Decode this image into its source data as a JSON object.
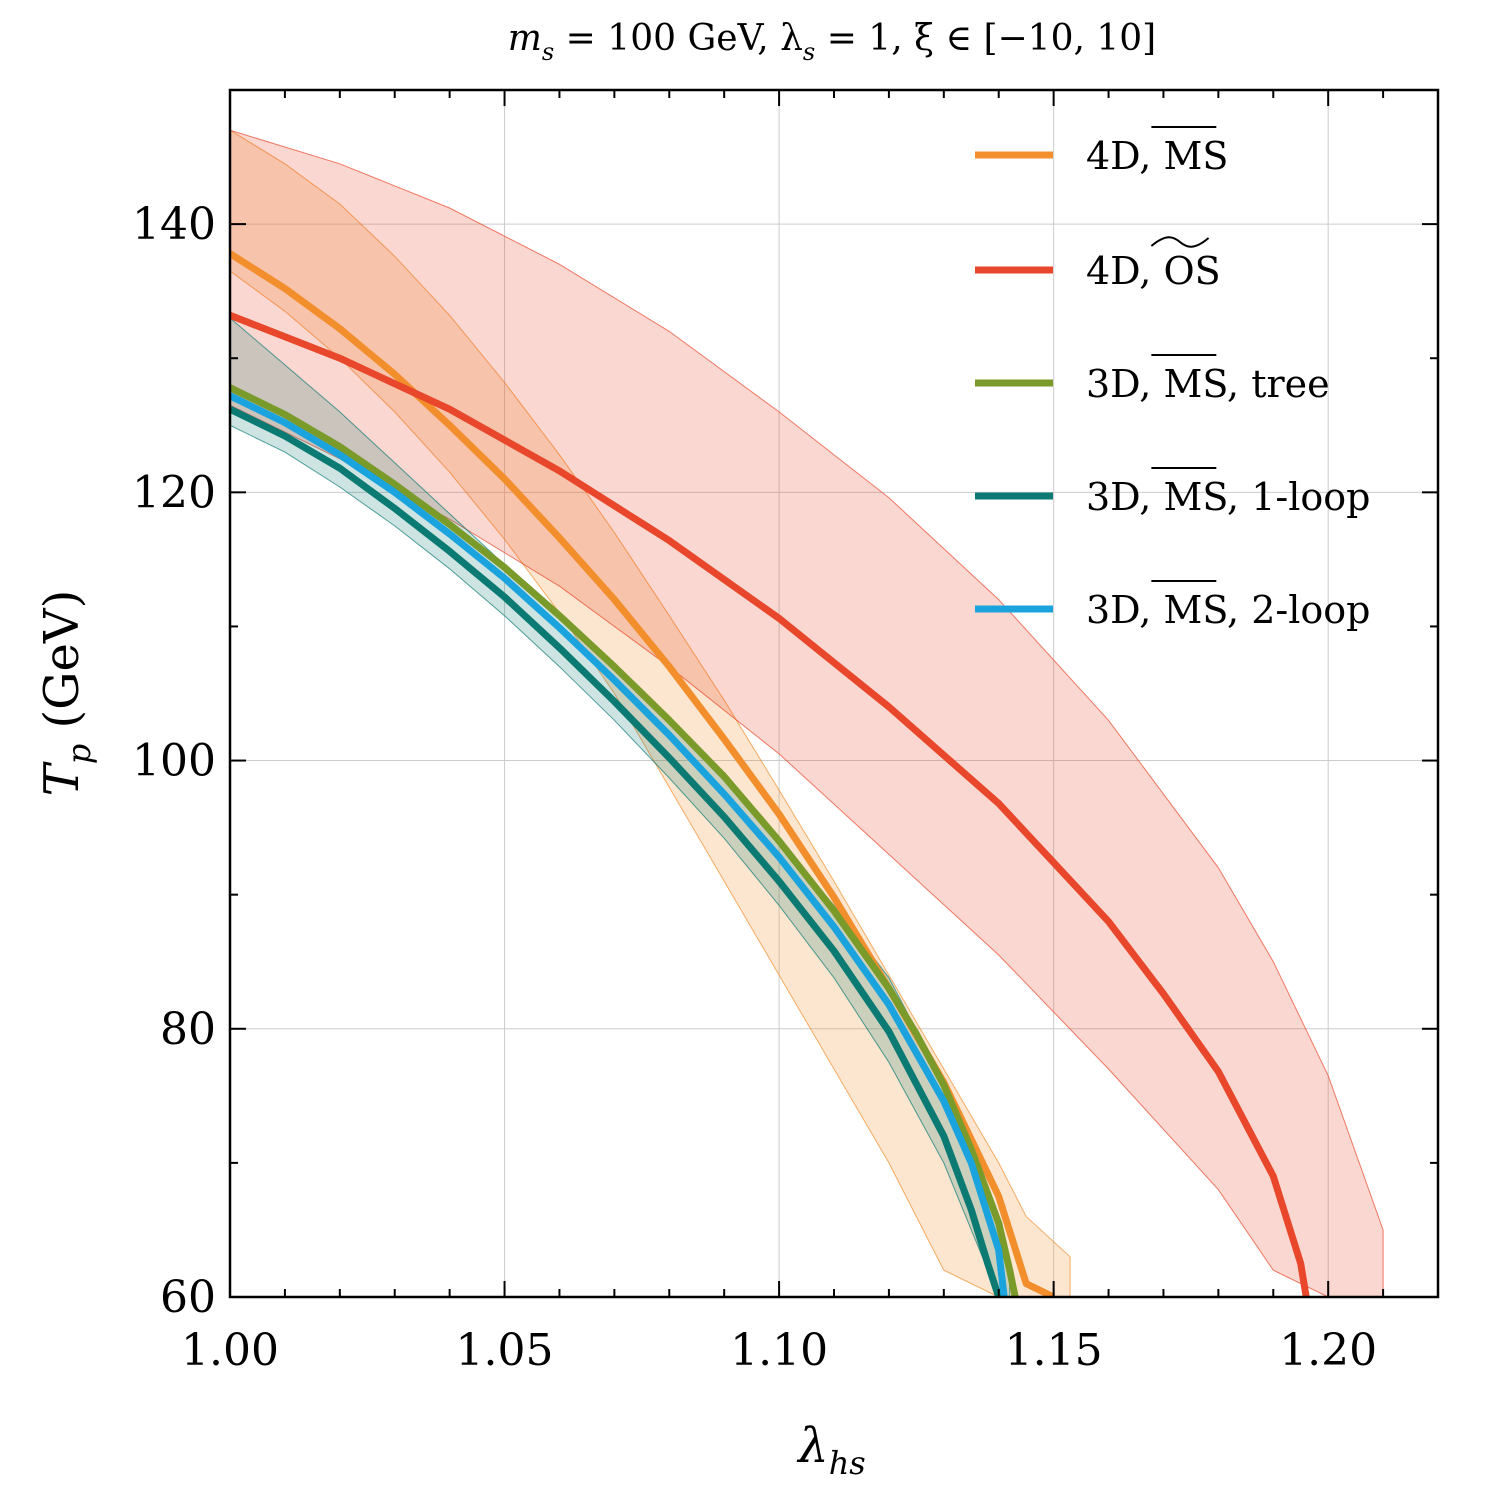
{
  "chart_data": {
    "type": "line",
    "title": "m_s = 100 GeV, λ_s = 1, ξ ∈ [−10, 10]",
    "title_parts": [
      "m",
      "s",
      " = 100 GeV, λ",
      "s",
      " = 1, ξ ∈ [−10, 10]"
    ],
    "xlabel": "λ_hs",
    "xlabel_parts": [
      "λ",
      "hs"
    ],
    "ylabel": "T_p (GeV)",
    "ylabel_parts": [
      "T",
      "p",
      " (GeV)"
    ],
    "xlim": [
      1.0,
      1.22
    ],
    "ylim": [
      60,
      150
    ],
    "xticks": [
      1.0,
      1.05,
      1.1,
      1.15,
      1.2
    ],
    "xtick_labels": [
      "1.00",
      "1.05",
      "1.10",
      "1.15",
      "1.20"
    ],
    "yticks": [
      60,
      80,
      100,
      120,
      140
    ],
    "ytick_labels": [
      "60",
      "80",
      "100",
      "120",
      "140"
    ],
    "x_minor_step": 0.01,
    "y_minor_step": 10,
    "grid": true,
    "legend_position": "top-right",
    "legend_labels": [
      {
        "main": "4D, MS",
        "over": "MS",
        "bar": "line"
      },
      {
        "main": "4D, OS",
        "over": "OS",
        "bar": "tilde"
      },
      {
        "main": "3D, MS, tree",
        "over": "MS",
        "bar": "line"
      },
      {
        "main": "3D, MS, 1-loop",
        "over": "MS",
        "bar": "line"
      },
      {
        "main": "3D, MS, 2-loop",
        "over": "MS",
        "bar": "line"
      }
    ],
    "series": [
      {
        "name": "4D, MS",
        "color": "#f28e2b",
        "x": [
          1.0,
          1.01,
          1.02,
          1.03,
          1.04,
          1.05,
          1.06,
          1.07,
          1.08,
          1.09,
          1.1,
          1.11,
          1.12,
          1.13,
          1.14,
          1.145,
          1.15
        ],
        "y": [
          137.8,
          135.2,
          132.2,
          128.8,
          125.0,
          121.0,
          116.6,
          112.0,
          107.0,
          101.6,
          96.0,
          89.8,
          83.0,
          76.0,
          67.5,
          61.0,
          60.0
        ],
        "band": {
          "color": "#f28e2b",
          "opacity": 0.22,
          "x": [
            1.0,
            1.01,
            1.02,
            1.03,
            1.04,
            1.05,
            1.06,
            1.07,
            1.08,
            1.09,
            1.1,
            1.11,
            1.12,
            1.13,
            1.14,
            1.145,
            1.153,
            1.153
          ],
          "upper": [
            147.0,
            144.5,
            141.5,
            137.6,
            133.2,
            128.2,
            122.8,
            117.0,
            110.8,
            104.5,
            97.8,
            91.0,
            84.0,
            77.0,
            70.0,
            66.0,
            63.0,
            60.0
          ],
          "lower": [
            136.5,
            133.5,
            130.0,
            126.0,
            121.5,
            116.5,
            111.0,
            105.0,
            98.0,
            91.0,
            84.0,
            77.0,
            70.0,
            62.0,
            60.0,
            60.0,
            60.0,
            60.0
          ]
        }
      },
      {
        "name": "4D, OS",
        "color": "#e8472b",
        "x": [
          1.0,
          1.02,
          1.04,
          1.06,
          1.08,
          1.1,
          1.12,
          1.14,
          1.16,
          1.17,
          1.18,
          1.19,
          1.195,
          1.196
        ],
        "y": [
          133.2,
          130.0,
          126.2,
          121.6,
          116.4,
          110.6,
          104.0,
          96.8,
          88.0,
          82.6,
          76.8,
          69.0,
          62.5,
          60.0
        ],
        "band": {
          "color": "#e8472b",
          "opacity": 0.22,
          "x": [
            1.0,
            1.02,
            1.04,
            1.06,
            1.08,
            1.1,
            1.12,
            1.14,
            1.16,
            1.18,
            1.19,
            1.2,
            1.21,
            1.21
          ],
          "upper": [
            147.0,
            144.5,
            141.2,
            137.0,
            132.0,
            126.0,
            119.6,
            112.0,
            103.0,
            92.0,
            85.0,
            76.5,
            65.0,
            60.0
          ],
          "lower": [
            126.5,
            122.5,
            118.0,
            113.0,
            107.0,
            100.5,
            93.0,
            85.5,
            77.0,
            68.0,
            62.0,
            60.0,
            60.0,
            60.0
          ]
        }
      },
      {
        "name": "3D, MS, tree",
        "color": "#7a9a2a",
        "x": [
          1.0,
          1.01,
          1.02,
          1.03,
          1.04,
          1.05,
          1.06,
          1.07,
          1.08,
          1.09,
          1.1,
          1.11,
          1.12,
          1.125,
          1.13,
          1.135,
          1.14,
          1.142,
          1.143
        ],
        "y": [
          127.8,
          125.8,
          123.4,
          120.6,
          117.6,
          114.4,
          110.8,
          107.0,
          103.0,
          98.8,
          94.0,
          88.8,
          83.0,
          79.6,
          75.8,
          71.0,
          65.5,
          62.0,
          60.0
        ]
      },
      {
        "name": "3D, MS, 1-loop",
        "color": "#0a7a73",
        "x": [
          1.0,
          1.01,
          1.02,
          1.03,
          1.04,
          1.05,
          1.06,
          1.07,
          1.08,
          1.09,
          1.1,
          1.11,
          1.12,
          1.13,
          1.135,
          1.138,
          1.14
        ],
        "y": [
          126.2,
          124.2,
          121.8,
          118.8,
          115.6,
          112.2,
          108.4,
          104.4,
          100.2,
          95.8,
          91.0,
          85.8,
          79.8,
          72.0,
          66.5,
          62.5,
          60.0
        ],
        "band": {
          "color": "#0a7a73",
          "opacity": 0.2,
          "x": [
            1.0,
            1.01,
            1.02,
            1.03,
            1.04,
            1.05,
            1.06,
            1.07,
            1.08,
            1.09,
            1.1,
            1.11,
            1.12,
            1.13,
            1.135,
            1.14,
            1.142,
            1.142
          ],
          "upper": [
            133.0,
            129.5,
            126.0,
            122.2,
            118.4,
            114.6,
            110.8,
            106.8,
            102.8,
            98.5,
            94.0,
            89.2,
            83.8,
            76.0,
            71.0,
            65.0,
            62.0,
            60.0
          ],
          "lower": [
            125.0,
            123.0,
            120.4,
            117.5,
            114.3,
            110.8,
            107.0,
            103.0,
            98.7,
            94.2,
            89.2,
            83.8,
            77.5,
            70.0,
            65.0,
            60.0,
            60.0,
            60.0
          ]
        }
      },
      {
        "name": "3D, MS, 2-loop",
        "color": "#1aa3dc",
        "x": [
          1.0,
          1.01,
          1.02,
          1.03,
          1.04,
          1.05,
          1.06,
          1.07,
          1.08,
          1.09,
          1.1,
          1.11,
          1.12,
          1.13,
          1.135,
          1.14,
          1.141
        ],
        "y": [
          127.2,
          125.2,
          122.8,
          120.0,
          116.9,
          113.6,
          109.9,
          106.0,
          101.9,
          97.5,
          92.8,
          87.6,
          81.8,
          74.6,
          70.0,
          63.5,
          60.0
        ]
      }
    ]
  }
}
